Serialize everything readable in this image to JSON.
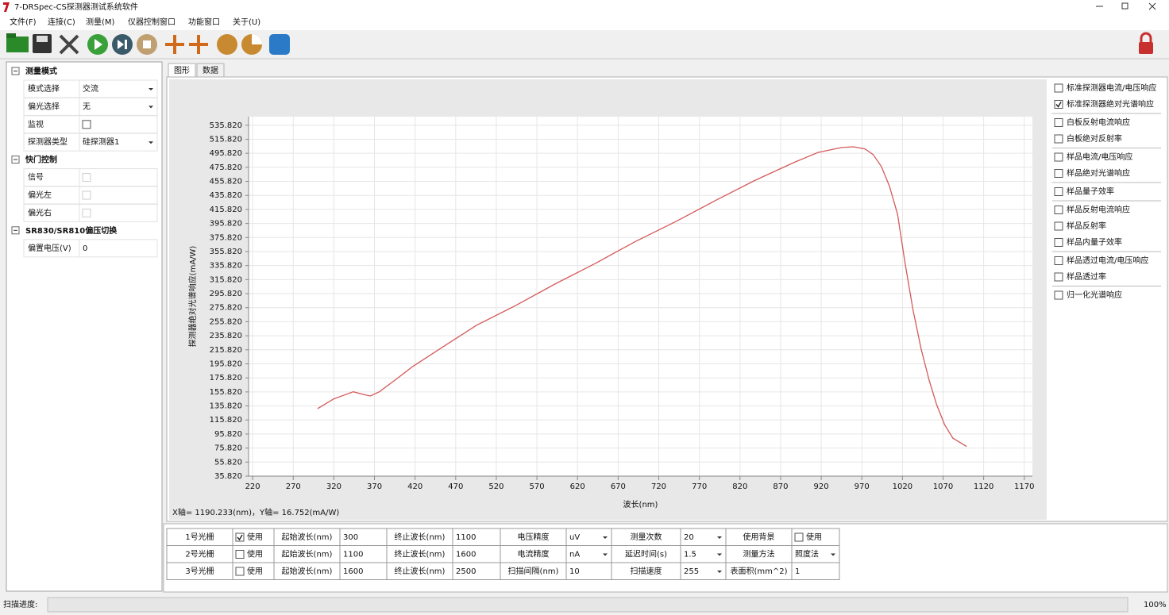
{
  "window": {
    "title": "7-DRSpec-CS探测器测试系统软件"
  },
  "menu": [
    "文件(F)",
    "连接(C)",
    "测量(M)",
    "仪器控制窗口",
    "功能窗口",
    "关于(U)"
  ],
  "left_panel": {
    "sections": [
      {
        "title": "测量模式",
        "rows": [
          {
            "label": "模式选择",
            "value": "交流",
            "dropdown": true
          },
          {
            "label": "偏光选择",
            "value": "无",
            "dropdown": true
          },
          {
            "label": "监视",
            "checkbox": true
          },
          {
            "label": "探测器类型",
            "value": "硅探测器1",
            "dropdown": true
          }
        ]
      },
      {
        "title": "快门控制",
        "rows": [
          {
            "label": "信号",
            "checkbox": true,
            "disabled": true
          },
          {
            "label": "偏光左",
            "checkbox": true,
            "disabled": true
          },
          {
            "label": "偏光右",
            "checkbox": true,
            "disabled": true
          }
        ]
      },
      {
        "title": "SR830/SR810偏压切换",
        "rows": [
          {
            "label": "偏置电压(V)",
            "value": "0",
            "disabled": true
          }
        ]
      }
    ]
  },
  "tabs": [
    "图形",
    "数据"
  ],
  "chart": {
    "type": "line",
    "y_label": "探测器绝对光谱响应(mA/W)",
    "x_label": "波长(nm)",
    "cursor_readout": "X轴= 1190.233(nm)，Y轴= 16.752(mA/W)",
    "color": "#d45a5a",
    "grid": true,
    "xlim": [
      215,
      1180
    ],
    "ylim": [
      35.82,
      548
    ],
    "xticks": [
      220,
      270,
      320,
      370,
      420,
      470,
      520,
      570,
      620,
      670,
      720,
      770,
      820,
      870,
      920,
      970,
      1020,
      1070,
      1120,
      1170
    ],
    "yticks": [
      {
        "value": 35.82,
        "label": "35.820"
      },
      {
        "value": 55.82,
        "label": "55.820"
      },
      {
        "value": 75.82,
        "label": "75.820"
      },
      {
        "value": 95.82,
        "label": "95.820"
      },
      {
        "value": 115.82,
        "label": "115.820"
      },
      {
        "value": 135.82,
        "label": "135.820"
      },
      {
        "value": 155.82,
        "label": "155.820"
      },
      {
        "value": 175.82,
        "label": "175.820"
      },
      {
        "value": 195.82,
        "label": "195.820"
      },
      {
        "value": 215.82,
        "label": "215.820"
      },
      {
        "value": 235.82,
        "label": "235.820"
      },
      {
        "value": 255.82,
        "label": "255.820"
      },
      {
        "value": 275.82,
        "label": "275.820"
      },
      {
        "value": 295.82,
        "label": "295.820"
      },
      {
        "value": 315.82,
        "label": "315.820"
      },
      {
        "value": 335.82,
        "label": "335.820"
      },
      {
        "value": 355.82,
        "label": "355.820"
      },
      {
        "value": 375.82,
        "label": "375.820"
      },
      {
        "value": 395.82,
        "label": "395.820"
      },
      {
        "value": 415.82,
        "label": "415.820"
      },
      {
        "value": 435.82,
        "label": "435.820"
      },
      {
        "value": 455.82,
        "label": "455.820"
      },
      {
        "value": 475.82,
        "label": "475.820"
      },
      {
        "value": 495.82,
        "label": "495.820"
      },
      {
        "value": 515.82,
        "label": "515.820"
      },
      {
        "value": 535.82,
        "label": "535.820"
      }
    ],
    "x": [
      300,
      320,
      344,
      357,
      365,
      376,
      398,
      417,
      457,
      496,
      544,
      593,
      642,
      691,
      740,
      789,
      838,
      887,
      916,
      945,
      960,
      974,
      984,
      994,
      1004,
      1014,
      1023,
      1033,
      1043,
      1053,
      1062,
      1072,
      1082,
      1099
    ],
    "values": [
      132,
      146,
      156,
      152,
      150,
      156,
      175,
      192,
      222,
      251,
      279,
      310,
      339,
      370,
      398,
      428,
      457,
      483,
      497,
      504,
      505,
      502,
      494,
      477,
      449,
      409,
      341,
      273,
      217,
      172,
      138,
      109,
      90,
      78
    ]
  },
  "legend_panel": {
    "groups": [
      [
        {
          "label": "标准探测器电流/电压响应",
          "color": "#2b2bb0",
          "checked": false
        },
        {
          "label": "标准探测器绝对光谱响应",
          "color": "#d03030",
          "checked": true
        }
      ],
      [
        {
          "label": "白板反射电流响应",
          "color": "#a0306a",
          "checked": false
        },
        {
          "label": "白板绝对反射率",
          "color": "#1e2f5a",
          "checked": false
        }
      ],
      [
        {
          "label": "样品电流/电压响应",
          "color": "#c030c0",
          "checked": false
        },
        {
          "label": "样品绝对光谱响应",
          "color": "#c030c0",
          "checked": false
        }
      ],
      [
        {
          "label": "样品量子效率",
          "color": "#c030c0",
          "checked": false
        }
      ],
      [
        {
          "label": "样品反射电流响应",
          "color": "#1e2f5a",
          "checked": false
        },
        {
          "label": "样品反射率",
          "color": "#c03030",
          "checked": false
        },
        {
          "label": "样品内量子效率",
          "color": "#1e2f5a",
          "checked": false
        }
      ],
      [
        {
          "label": "样品透过电流/电压响应",
          "color": "#8c8c1e",
          "checked": false
        },
        {
          "label": "样品透过率",
          "color": "#c03080",
          "checked": false
        }
      ],
      [
        {
          "label": "归一化光谱响应",
          "color": "#1e2f5a",
          "checked": false
        }
      ]
    ]
  },
  "settings_table": {
    "rows": [
      [
        "1号光栅",
        {
          "label": "使用",
          "checked": true
        },
        "起始波长(nm)",
        {
          "value": "300"
        },
        "终止波长(nm)",
        {
          "value": "1100"
        },
        "电压精度",
        {
          "value": "uV",
          "dropdown": true
        },
        "测量次数",
        {
          "value": "20",
          "dropdown": true
        },
        "使用背景",
        {
          "label": "使用",
          "checked": false
        }
      ],
      [
        "2号光栅",
        {
          "label": "使用",
          "checked": false
        },
        "起始波长(nm)",
        {
          "value": "1100",
          "disabled": true
        },
        "终止波长(nm)",
        {
          "value": "1600",
          "disabled": true
        },
        "电流精度",
        {
          "value": "nA",
          "dropdown": true
        },
        "延迟时间(s)",
        {
          "value": "1.5",
          "dropdown": true
        },
        "测量方法",
        {
          "value": "照度法",
          "dropdown": true
        }
      ],
      [
        "3号光栅",
        {
          "label": "使用",
          "checked": false
        },
        "起始波长(nm)",
        {
          "value": "1600",
          "disabled": true
        },
        "终止波长(nm)",
        {
          "value": "2500",
          "disabled": true
        },
        "扫描间隔(nm)",
        {
          "value": "10"
        },
        "扫描速度",
        {
          "value": "255",
          "dropdown": true
        },
        "表面积(mm^2)",
        {
          "value": "1"
        }
      ]
    ]
  },
  "status_bar": {
    "label": "扫描进度:",
    "percent": "100%"
  }
}
